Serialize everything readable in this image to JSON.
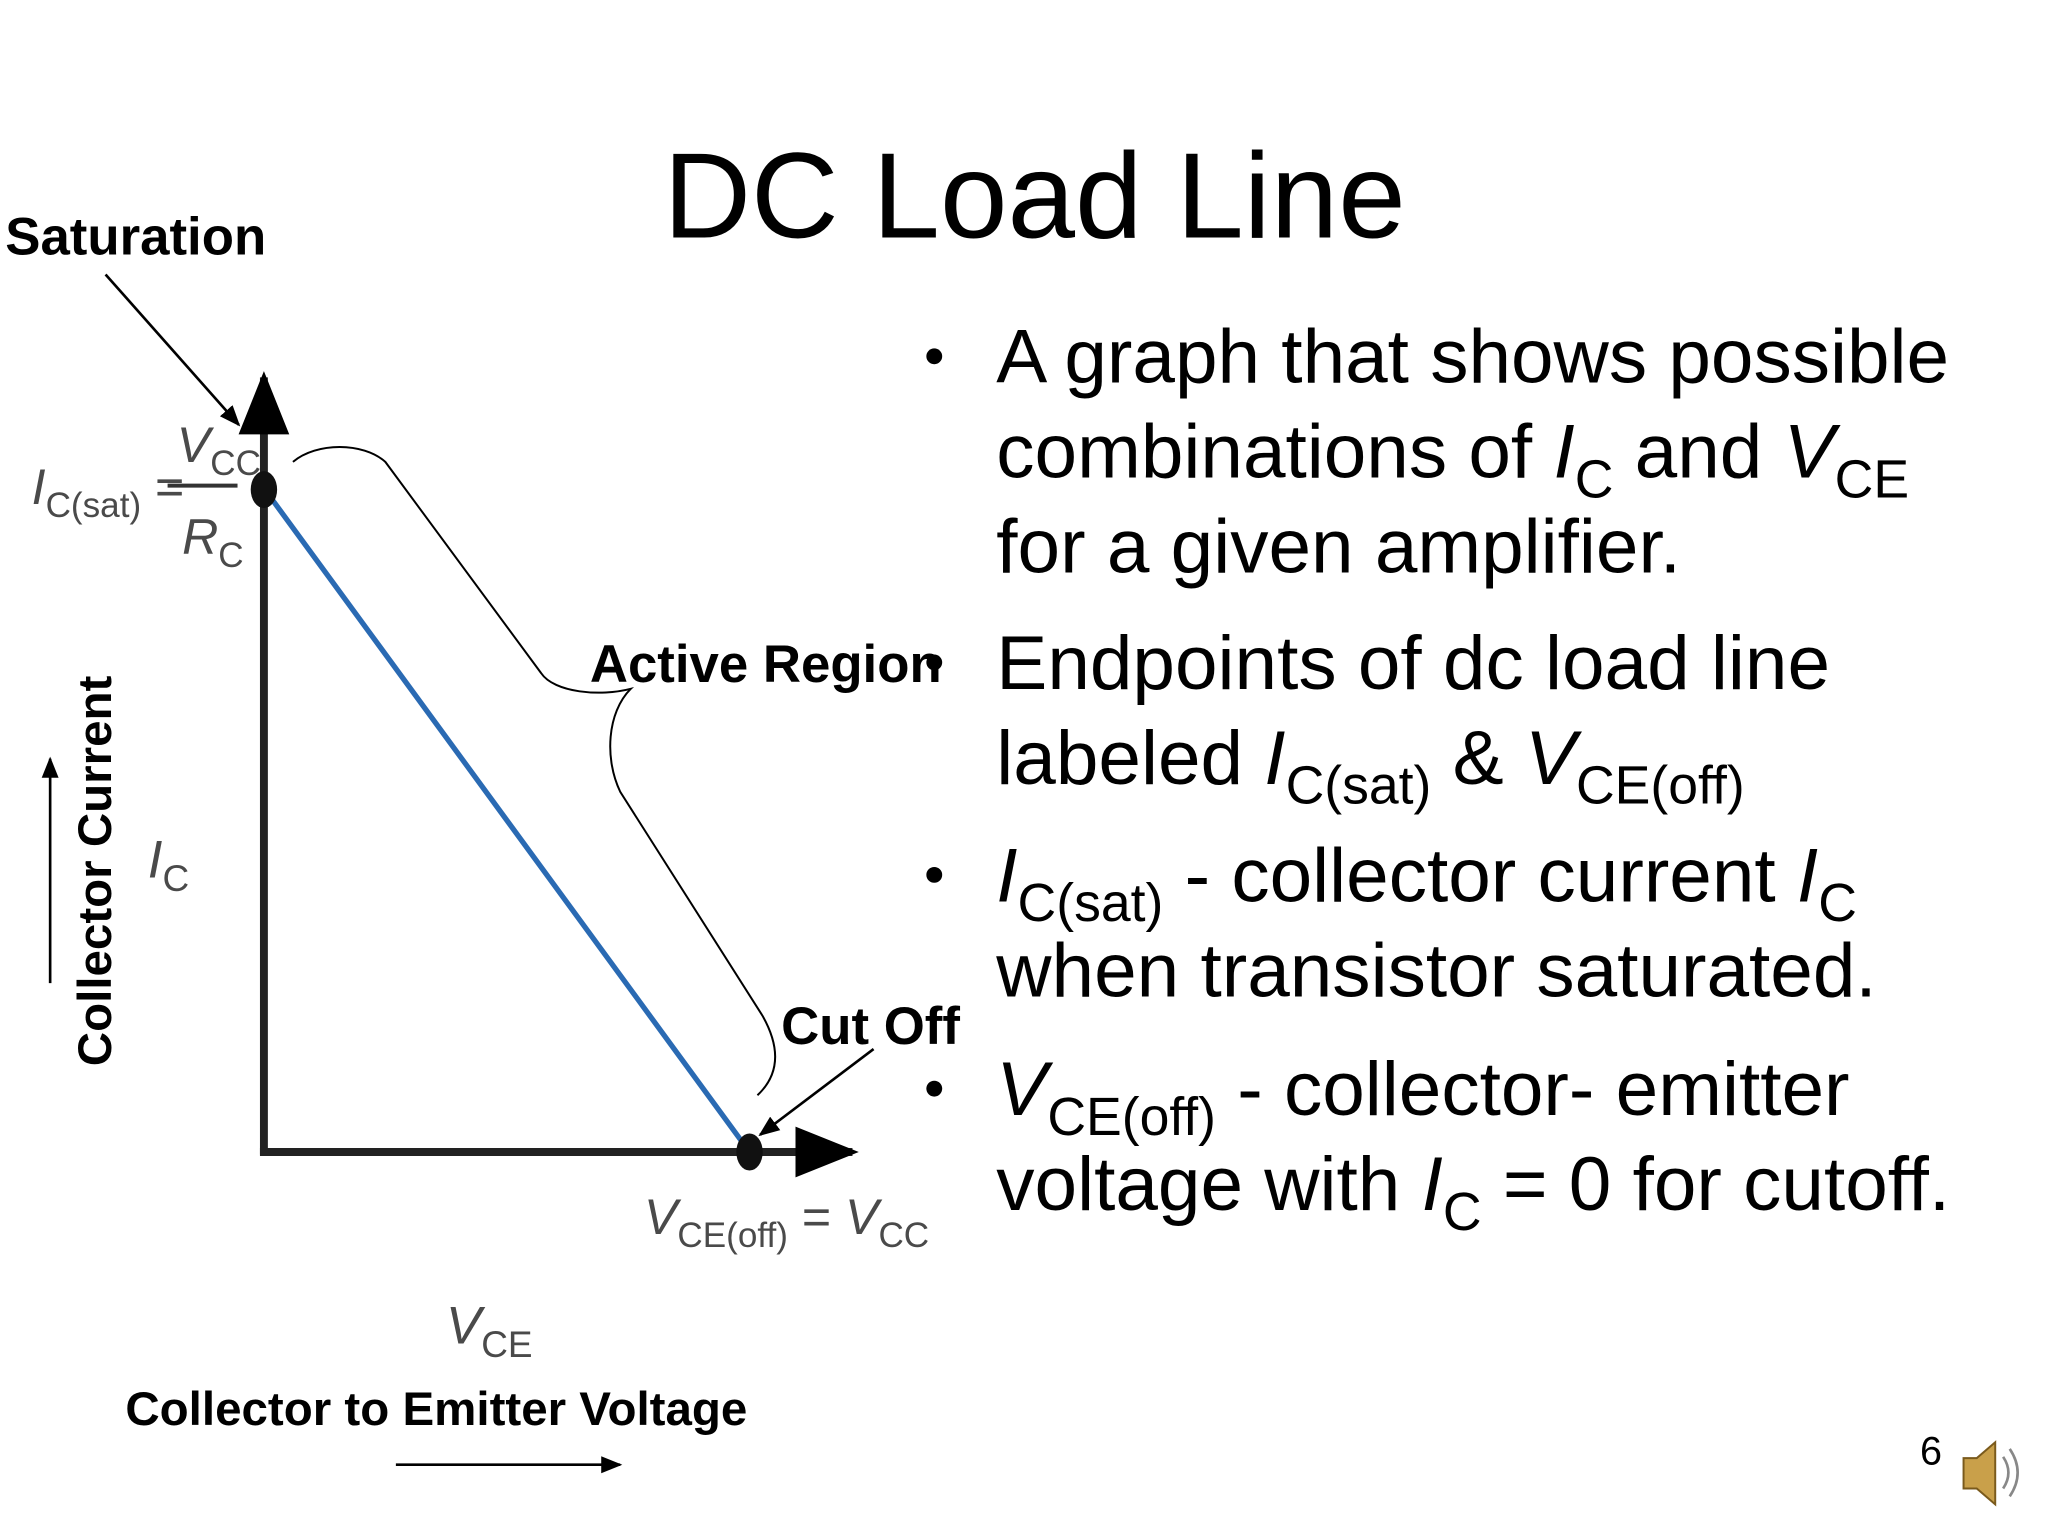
{
  "title": "DC Load Line",
  "bullets": [
    [
      [
        {
          "text": "A graph that shows possible"
        }
      ],
      [
        {
          "text": "combinations of "
        },
        {
          "text": "I",
          "style": "italic"
        },
        {
          "text": "C",
          "style": "sub"
        },
        {
          "text": " and "
        },
        {
          "text": "V",
          "style": "italic"
        },
        {
          "text": "CE",
          "style": "sub"
        }
      ],
      [
        {
          "text": "for a given amplifier."
        }
      ]
    ],
    [
      [
        {
          "text": "Endpoints of dc load line"
        }
      ],
      [
        {
          "text": "labeled "
        },
        {
          "text": "I",
          "style": "italic"
        },
        {
          "text": "C(sat)",
          "style": "sub"
        },
        {
          "text": " & "
        },
        {
          "text": "V",
          "style": "italic"
        },
        {
          "text": "CE(off)",
          "style": "sub"
        }
      ]
    ],
    [
      [
        {
          "text": "I",
          "style": "italic"
        },
        {
          "text": "C(sat)",
          "style": "sub"
        },
        {
          "text": " - collector current "
        },
        {
          "text": "I",
          "style": "italic"
        },
        {
          "text": "C",
          "style": "sub"
        }
      ],
      [
        {
          "text": "when transistor saturated."
        }
      ]
    ],
    [
      [
        {
          "text": "V",
          "style": "italic"
        },
        {
          "text": "CE(off)",
          "style": "sub"
        },
        {
          "text": " - collector- emitter"
        }
      ],
      [
        {
          "text": "voltage with "
        },
        {
          "text": "I",
          "style": "italic"
        },
        {
          "text": "C",
          "style": "sub"
        },
        {
          "text": " = 0 for cutoff."
        }
      ]
    ]
  ],
  "diagram": {
    "saturation_label": "Saturation",
    "active_label": "Active Region",
    "cutoff_label": "Cut Off",
    "y_axis_label": "Collector Current",
    "x_axis_label": "Collector to Emitter Voltage",
    "ic_sat": [
      {
        "text": "I",
        "style": "italic"
      },
      {
        "text": "C(sat)",
        "style": "sub"
      },
      {
        "text": " ="
      }
    ],
    "ic_sat_numerator": [
      {
        "text": "V",
        "style": "italic"
      },
      {
        "text": "CC",
        "style": "sub"
      }
    ],
    "ic_sat_denominator": [
      {
        "text": "R",
        "style": "italic"
      },
      {
        "text": "C",
        "style": "sub"
      }
    ],
    "vce_off": [
      {
        "text": "V",
        "style": "italic"
      },
      {
        "text": "CE(off)",
        "style": "sub"
      },
      {
        "text": " = "
      },
      {
        "text": "V",
        "style": "italic"
      },
      {
        "text": "CC",
        "style": "sub"
      }
    ],
    "ic_axis": [
      {
        "text": "I",
        "style": "italic"
      },
      {
        "text": "C",
        "style": "sub"
      }
    ],
    "vce_axis": [
      {
        "text": "V",
        "style": "italic"
      },
      {
        "text": "CE",
        "style": "sub"
      }
    ]
  },
  "page_number": "6"
}
